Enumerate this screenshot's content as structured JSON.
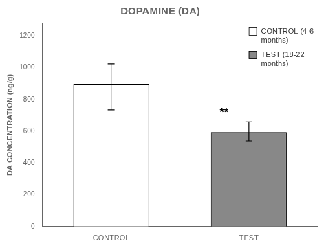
{
  "chart_data": {
    "type": "bar",
    "title": "DOPAMINE (DA)",
    "ylabel": "DA CONCENTRATION (ng/g)",
    "categories": [
      "CONTROL",
      "TEST"
    ],
    "series": [
      {
        "name": "CONTROL (4-6\nmonths)",
        "color": "white",
        "values": [
          895,
          null
        ],
        "errors_upper": [
          130,
          null
        ],
        "errors_lower": [
          160,
          null
        ]
      },
      {
        "name": "TEST (18-22\nmonths)",
        "color": "#888888",
        "values": [
          null,
          595
        ],
        "errors_upper": [
          null,
          65
        ],
        "errors_lower": [
          null,
          55
        ]
      }
    ],
    "annotations": [
      {
        "text": "**",
        "x": "TEST",
        "y": 680
      }
    ],
    "ylim": [
      0,
      1280
    ],
    "yticks": [
      0,
      200,
      400,
      600,
      800,
      1000,
      1200
    ],
    "grid": false,
    "legend": "upper right"
  }
}
